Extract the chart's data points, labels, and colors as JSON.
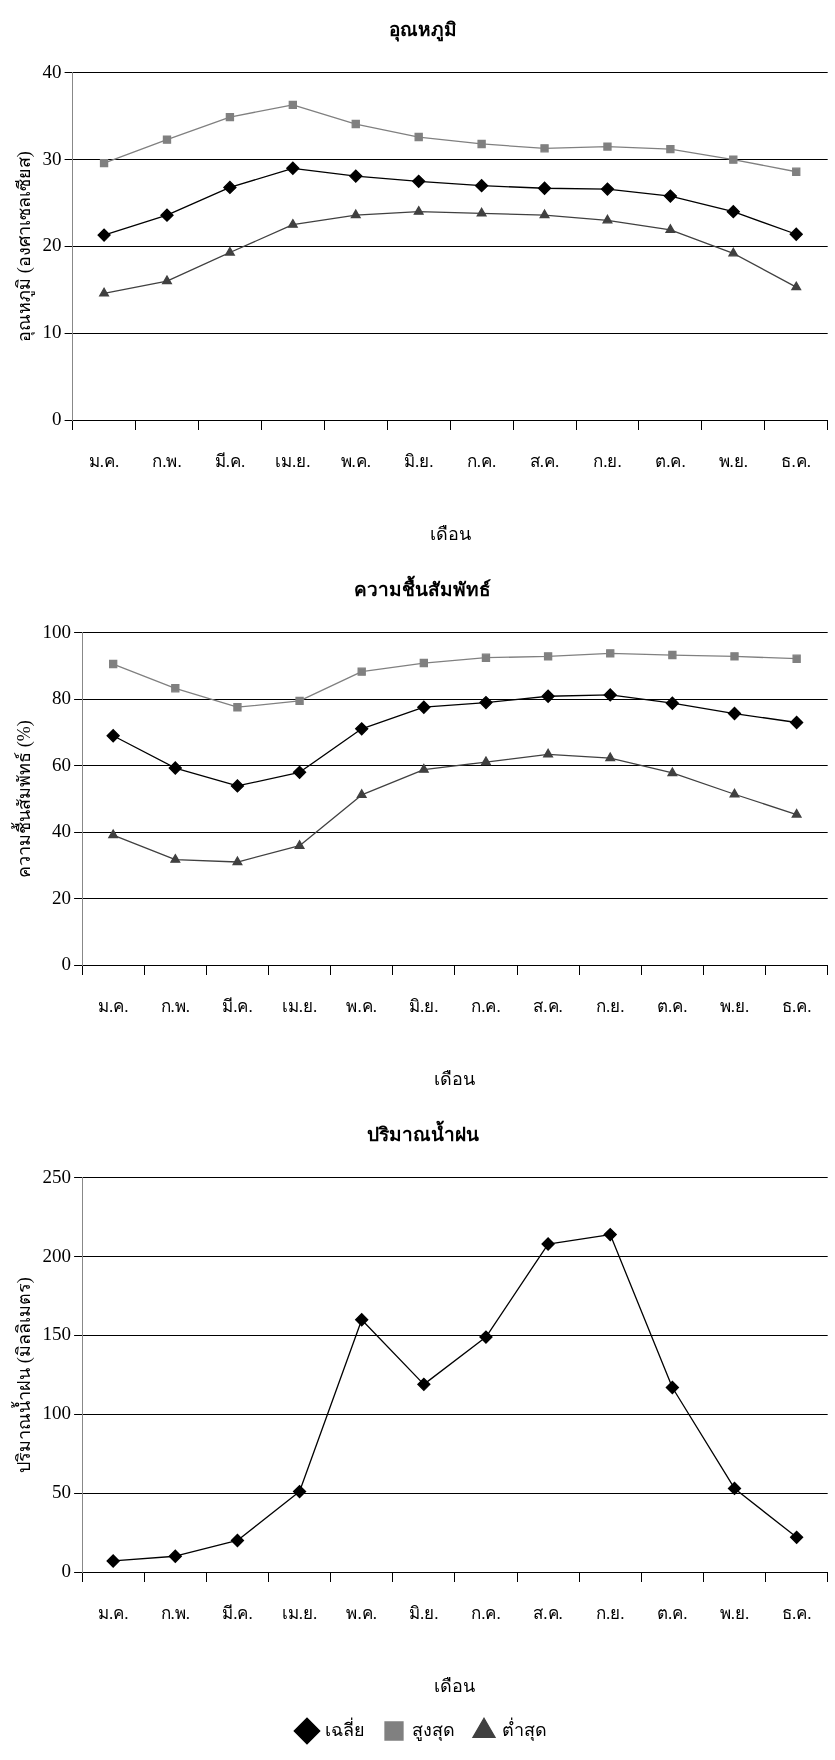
{
  "chart_data": [
    {
      "type": "line",
      "title": "อุณหภูมิ",
      "xlabel": "เดือน",
      "ylabel": "อุณหภูมิ (องศาเซลเซียส)",
      "categories": [
        "ม.ค.",
        "ก.พ.",
        "มี.ค.",
        "เม.ย.",
        "พ.ค.",
        "มิ.ย.",
        "ก.ค.",
        "ส.ค.",
        "ก.ย.",
        "ต.ค.",
        "พ.ย.",
        "ธ.ค."
      ],
      "series": [
        {
          "color": "#000000",
          "marker": "diamond",
          "values": [
            21.3,
            23.6,
            26.8,
            29.0,
            28.1,
            27.5,
            27.0,
            26.7,
            26.6,
            25.8,
            24.0,
            21.4
          ]
        },
        {
          "color": "#808080",
          "marker": "square",
          "values": [
            29.6,
            32.3,
            34.9,
            36.3,
            34.1,
            32.6,
            31.8,
            31.3,
            31.5,
            31.2,
            30.0,
            28.6
          ]
        },
        {
          "color": "#404040",
          "marker": "triangle",
          "values": [
            14.6,
            16.0,
            19.3,
            22.5,
            23.6,
            24.0,
            23.8,
            23.6,
            23.0,
            21.9,
            19.2,
            15.3
          ]
        }
      ],
      "ylim": [
        0,
        40
      ],
      "yticks": [
        0,
        10,
        20,
        30,
        40
      ],
      "grid": "y"
    },
    {
      "type": "line",
      "title": "ความชื้นสัมพัทธ์",
      "xlabel": "เดือน",
      "ylabel": "ความชื้นสัมพัทธ์ (%)",
      "categories": [
        "ม.ค.",
        "ก.พ.",
        "มี.ค.",
        "เม.ย.",
        "พ.ค.",
        "มิ.ย.",
        "ก.ค.",
        "ส.ค.",
        "ก.ย.",
        "ต.ค.",
        "พ.ย.",
        "ธ.ค."
      ],
      "series": [
        {
          "color": "#000000",
          "marker": "diamond",
          "values": [
            69.0,
            59.3,
            53.9,
            58.0,
            71.1,
            77.6,
            79.0,
            80.9,
            81.3,
            78.8,
            75.7,
            73.0
          ]
        },
        {
          "color": "#808080",
          "marker": "square",
          "values": [
            90.6,
            83.3,
            77.6,
            79.5,
            88.3,
            90.9,
            92.5,
            92.9,
            93.8,
            93.3,
            92.9,
            92.2
          ]
        },
        {
          "color": "#404040",
          "marker": "triangle",
          "values": [
            39.1,
            31.7,
            31.0,
            35.9,
            51.2,
            58.8,
            61.1,
            63.4,
            62.3,
            57.8,
            51.4,
            45.3
          ]
        }
      ],
      "ylim": [
        0,
        100
      ],
      "yticks": [
        0,
        20,
        40,
        60,
        80,
        100
      ],
      "grid": "y"
    },
    {
      "type": "line",
      "title": "ปริมาณน้ำฝน",
      "xlabel": "เดือน",
      "ylabel": "ปริมาณน้ำฝน (มิลลิเมตร)",
      "categories": [
        "ม.ค.",
        "ก.พ.",
        "มี.ค.",
        "เม.ย.",
        "พ.ค.",
        "มิ.ย.",
        "ก.ค.",
        "ส.ค.",
        "ก.ย.",
        "ต.ค.",
        "พ.ย.",
        "ธ.ค."
      ],
      "series": [
        {
          "name": "เฉลี่ย",
          "color": "#000000",
          "marker": "diamond",
          "values": [
            7,
            10,
            20,
            51,
            160,
            119,
            149,
            208,
            214,
            117,
            53,
            22
          ]
        },
        {
          "name": "สูงสุด",
          "color": "#808080",
          "marker": "square",
          "values": [
            null,
            null,
            null,
            null,
            null,
            null,
            null,
            null,
            null,
            null,
            null,
            null
          ]
        },
        {
          "name": "ต่ำสุด",
          "color": "#404040",
          "marker": "triangle",
          "values": [
            null,
            null,
            null,
            null,
            null,
            null,
            null,
            null,
            null,
            null,
            null,
            null
          ]
        }
      ],
      "ylim": [
        0,
        250
      ],
      "yticks": [
        0,
        50,
        100,
        150,
        200,
        250
      ],
      "grid": "y",
      "legend": "bottom"
    }
  ]
}
